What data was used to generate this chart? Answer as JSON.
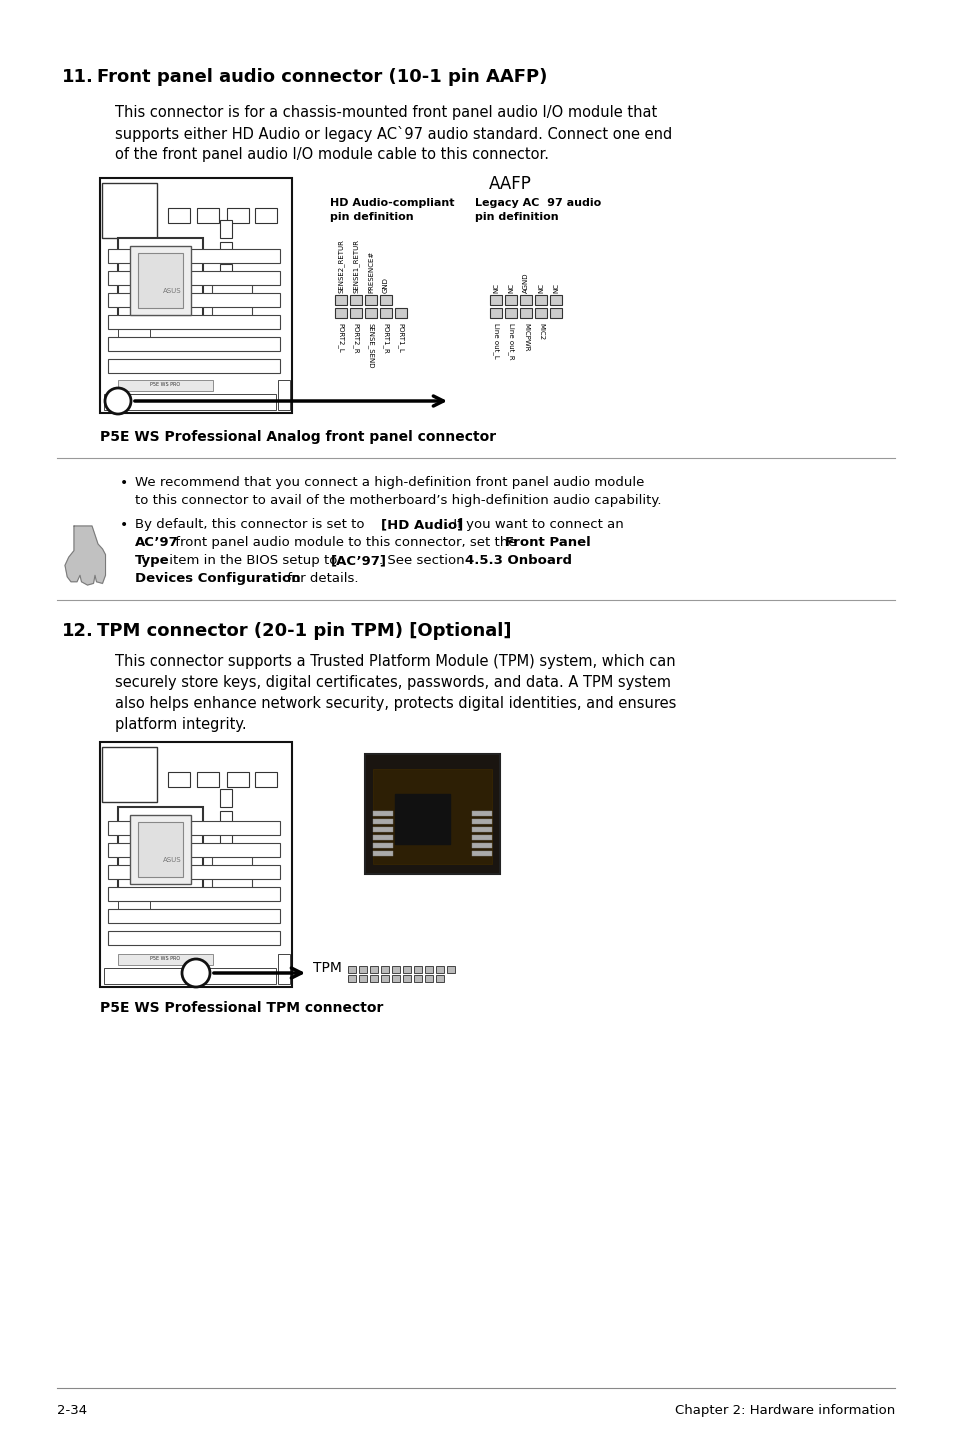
{
  "bg_color": "#ffffff",
  "page_number": "2-34",
  "chapter_title": "Chapter 2: Hardware information",
  "section11_num": "11.",
  "section11_head": "Front panel audio connector (10-1 pin AAFP)",
  "section11_body1": "This connector is for a chassis-mounted front panel audio I/O module that",
  "section11_body2": "supports either HD Audio or legacy AC`97 audio standard. Connect one end",
  "section11_body3": "of the front panel audio I/O module cable to this connector.",
  "aafp_label": "AAFP",
  "hd_pin_label1": "HD Audio-compliant",
  "hd_pin_label2": "pin definition",
  "legacy_pin_label1": "Legacy AC  97 audio",
  "legacy_pin_label2": "pin definition",
  "hd_top_labels": [
    "SENSE2_RETUR",
    "SENSE1_RETUR",
    "PRESENCE#",
    "GND"
  ],
  "hd_bot_labels": [
    "PORT2_L",
    "PORT2_R",
    "SENSE_SEND",
    "PORT1_R",
    "PORT1_L"
  ],
  "legacy_top_labels": [
    "NC",
    "NC",
    "AGND",
    "NC",
    "NC"
  ],
  "legacy_bot_labels": [
    "Line out_L",
    "Line out_R",
    "MICPWR",
    "MIC2",
    ""
  ],
  "caption1": "P5E WS Professional Analog front panel connector",
  "note1_line1": "We recommend that you connect a high-definition front panel audio module",
  "note1_line2": "to this connector to avail of the motherboard’s high-definition audio capability.",
  "note2_pre": "By default, this connector is set to ",
  "note2_bold1": "[HD Audio]",
  "note2_mid1": ". If you want to connect an",
  "note2_bold2": "AC’97",
  "note2_mid2": " front panel audio module to this connector, set the ",
  "note2_bold3": "Front Panel",
  "note2_bold4": "Type",
  "note2_mid3": " item in the BIOS setup to ",
  "note2_bold5": "[AC’97]",
  "note2_mid4": ". See section ",
  "note2_bold6": "4.5.3 Onboard",
  "note2_bold7": "Devices Configuration",
  "note2_end": " for details.",
  "section12_num": "12.",
  "section12_head": "TPM connector (20-1 pin TPM) [Optional]",
  "section12_body1": "This connector supports a Trusted Platform Module (TPM) system, which can",
  "section12_body2": "securely store keys, digital certificates, passwords, and data. A TPM system",
  "section12_body3": "also helps enhance network security, protects digital identities, and ensures",
  "section12_body4": "platform integrity.",
  "tpm_label": "TPM",
  "caption2": "P5E WS Professional TPM connector"
}
